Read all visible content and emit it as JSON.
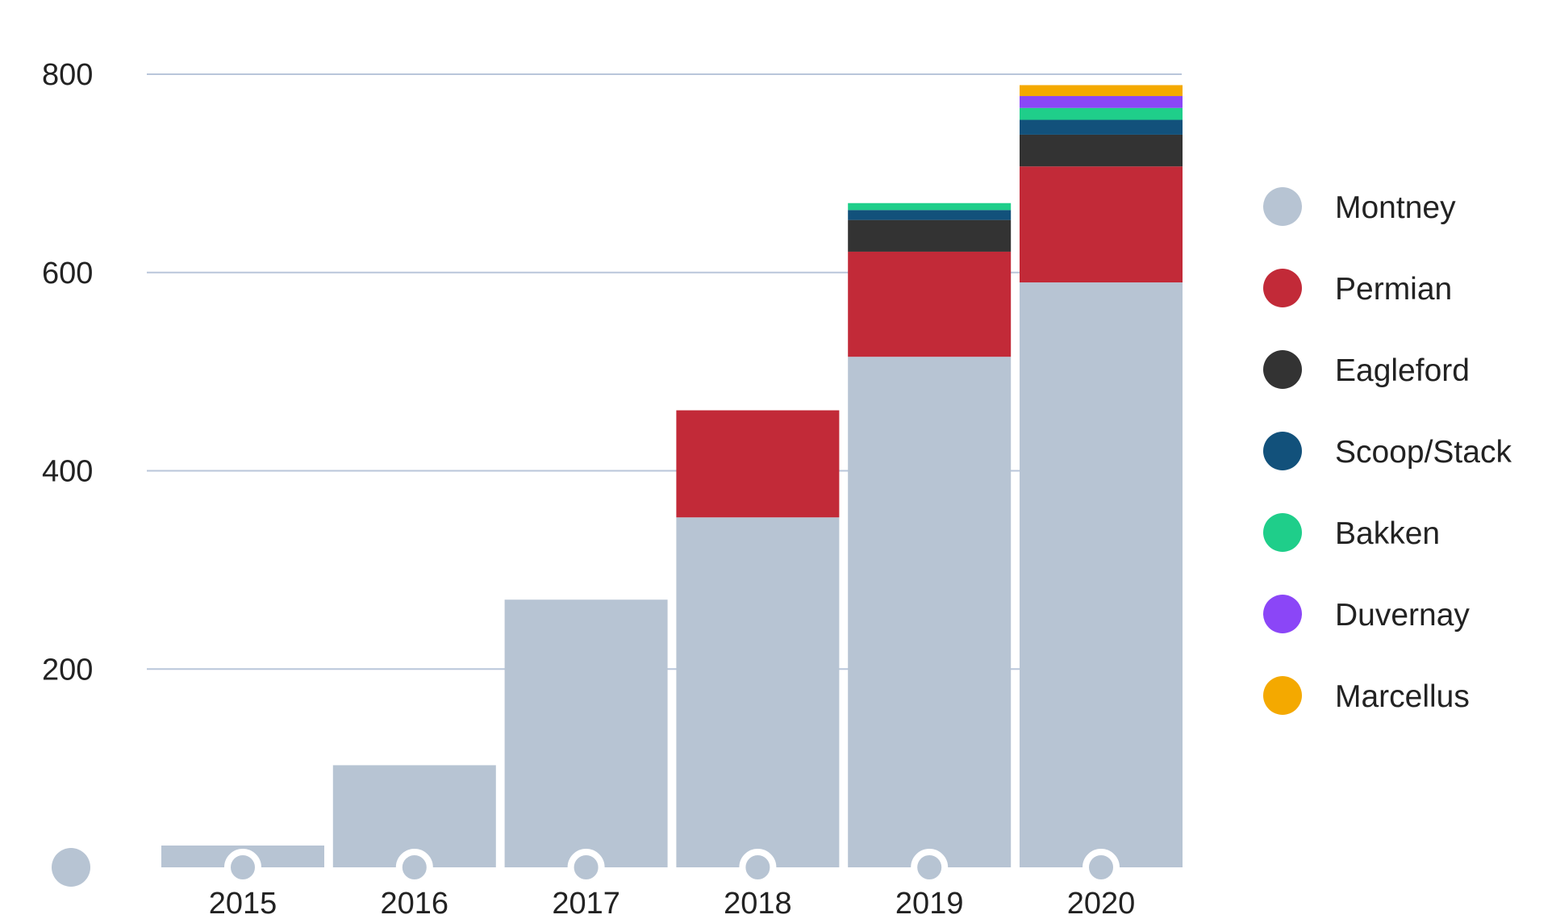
{
  "chart_data": {
    "type": "bar",
    "stacked": true,
    "categories": [
      "2015",
      "2016",
      "2017",
      "2018",
      "2019",
      "2020"
    ],
    "ylim": [
      0,
      800
    ],
    "yticks": [
      200,
      400,
      600,
      800
    ],
    "grid": true,
    "legend_position": "right",
    "series": [
      {
        "name": "Montney",
        "color": "#b7c4d3",
        "values": [
          22,
          103,
          270,
          353,
          515,
          590
        ]
      },
      {
        "name": "Permian",
        "color": "#c22a38",
        "values": [
          0,
          0,
          0,
          108,
          106,
          117
        ]
      },
      {
        "name": "Eagleford",
        "color": "#333333",
        "values": [
          0,
          0,
          0,
          0,
          32,
          32
        ]
      },
      {
        "name": "Scoop/Stack",
        "color": "#12517b",
        "values": [
          0,
          0,
          0,
          0,
          10,
          15
        ]
      },
      {
        "name": "Bakken",
        "color": "#1fce8a",
        "values": [
          0,
          0,
          0,
          0,
          7,
          12
        ]
      },
      {
        "name": "Duvernay",
        "color": "#8b46f7",
        "values": [
          0,
          0,
          0,
          0,
          0,
          12
        ]
      },
      {
        "name": "Marcellus",
        "color": "#f4a900",
        "values": [
          0,
          0,
          0,
          0,
          0,
          11
        ]
      }
    ]
  }
}
